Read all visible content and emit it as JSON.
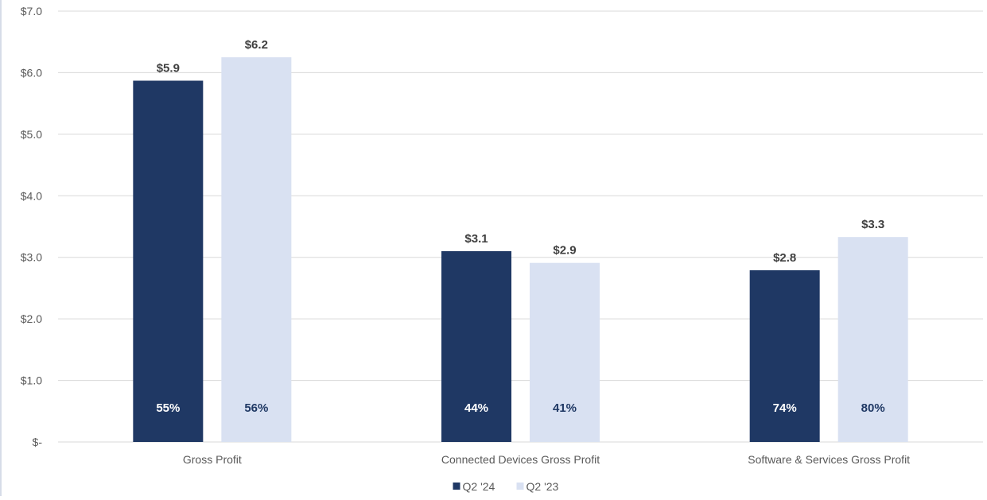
{
  "chart_data": {
    "type": "bar",
    "categories": [
      "Gross Profit",
      "Connected Devices Gross Profit",
      "Software & Services Gross Profit"
    ],
    "series": [
      {
        "name": "Q2 '24",
        "values": [
          5.87,
          3.1,
          2.79
        ],
        "value_labels": [
          "$5.9",
          "$3.1",
          "$2.8"
        ],
        "margin_labels": [
          "55%",
          "44%",
          "74%"
        ],
        "color": "#1f3864",
        "margin_label_color": "#ffffff"
      },
      {
        "name": "Q2 '23",
        "values": [
          6.25,
          2.91,
          3.33
        ],
        "value_labels": [
          "$6.2",
          "$2.9",
          "$3.3"
        ],
        "margin_labels": [
          "56%",
          "41%",
          "80%"
        ],
        "color": "#d9e1f2",
        "margin_label_color": "#1f3864"
      }
    ],
    "ylim": [
      0,
      7
    ],
    "yticks": [
      0,
      1,
      2,
      3,
      4,
      5,
      6,
      7
    ],
    "ytick_labels": [
      "$-",
      "$1.0",
      "$2.0",
      "$3.0",
      "$4.0",
      "$5.0",
      "$6.0",
      "$7.0"
    ],
    "grid": true,
    "legend_position": "bottom-center",
    "gridline_color": "#d9d9d9",
    "text_color": "#595959",
    "label_color": "#404040"
  }
}
